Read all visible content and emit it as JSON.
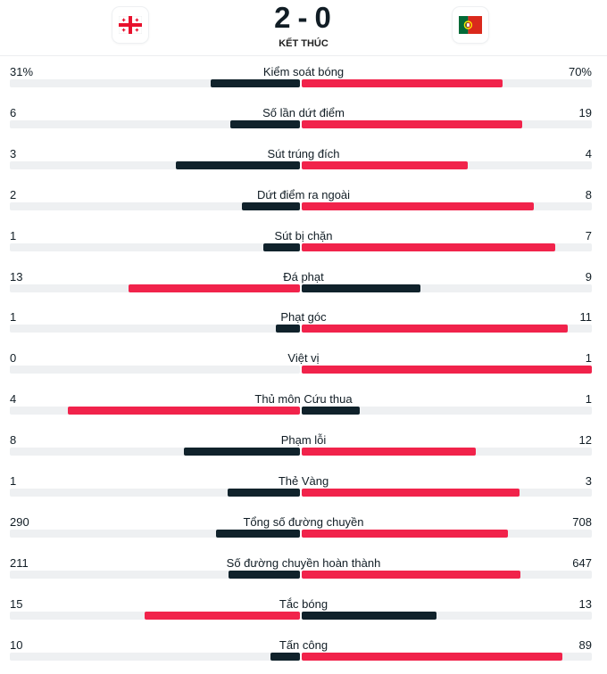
{
  "header": {
    "home_score": "2",
    "separator": "-",
    "away_score": "0",
    "status": "KẾT THÚC",
    "home_flag_icon": "georgia-flag-icon",
    "away_flag_icon": "portugal-flag-icon"
  },
  "colors": {
    "accent": "#f1234b",
    "dark": "#10222b",
    "track": "#eef0f2"
  },
  "stats": [
    {
      "label": "Kiểm soát bóng",
      "home": "31%",
      "away": "70%",
      "home_num": 31,
      "away_num": 70
    },
    {
      "label": "Số lần dứt điểm",
      "home": "6",
      "away": "19",
      "home_num": 6,
      "away_num": 19
    },
    {
      "label": "Sút trúng đích",
      "home": "3",
      "away": "4",
      "home_num": 3,
      "away_num": 4
    },
    {
      "label": "Dứt điểm ra ngoài",
      "home": "2",
      "away": "8",
      "home_num": 2,
      "away_num": 8
    },
    {
      "label": "Sút bị chặn",
      "home": "1",
      "away": "7",
      "home_num": 1,
      "away_num": 7
    },
    {
      "label": "Đá phạt",
      "home": "13",
      "away": "9",
      "home_num": 13,
      "away_num": 9
    },
    {
      "label": "Phạt góc",
      "home": "1",
      "away": "11",
      "home_num": 1,
      "away_num": 11
    },
    {
      "label": "Việt vị",
      "home": "0",
      "away": "1",
      "home_num": 0,
      "away_num": 1
    },
    {
      "label": "Thủ môn Cứu thua",
      "home": "4",
      "away": "1",
      "home_num": 4,
      "away_num": 1
    },
    {
      "label": "Phạm lỗi",
      "home": "8",
      "away": "12",
      "home_num": 8,
      "away_num": 12
    },
    {
      "label": "Thẻ Vàng",
      "home": "1",
      "away": "3",
      "home_num": 1,
      "away_num": 3
    },
    {
      "label": "Tổng số đường chuyền",
      "home": "290",
      "away": "708",
      "home_num": 290,
      "away_num": 708
    },
    {
      "label": "Số đường chuyền hoàn thành",
      "home": "211",
      "away": "647",
      "home_num": 211,
      "away_num": 647
    },
    {
      "label": "Tắc bóng",
      "home": "15",
      "away": "13",
      "home_num": 15,
      "away_num": 13
    },
    {
      "label": "Tấn công",
      "home": "10",
      "away": "89",
      "home_num": 10,
      "away_num": 89
    }
  ]
}
